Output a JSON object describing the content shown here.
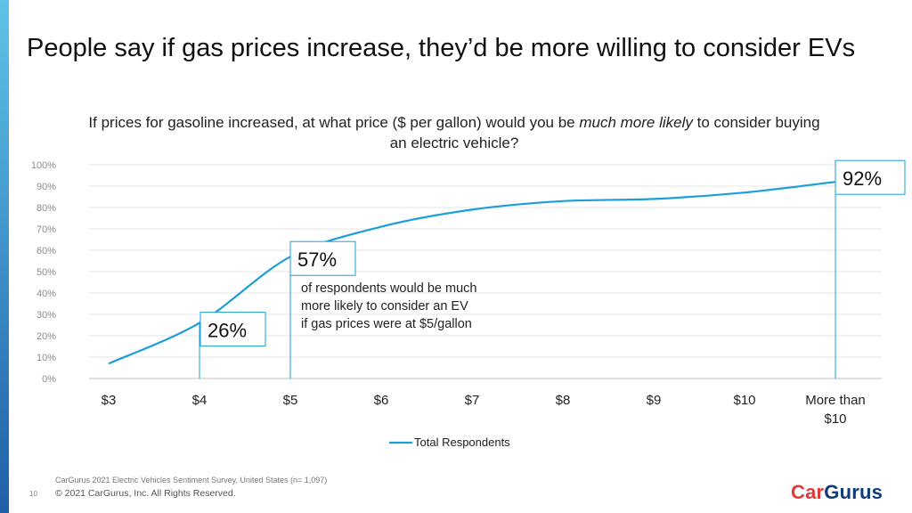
{
  "slide": {
    "title": "People say if gas prices increase, they’d be more willing to consider EVs",
    "question_part1": "If prices for gasoline increased, at what price ($ per gallon) would you be ",
    "question_emphasis": "much more likely",
    "question_part2": " to consider buying an electric vehicle?",
    "source": "CarGurus 2021 Electric Vehicles Sentiment Survey, United States (n= 1,097)",
    "copyright": "© 2021 CarGurus, Inc.  All Rights Reserved.",
    "page_number": "10",
    "logo": {
      "part1": "Car",
      "part2": "Gurus"
    },
    "colors": {
      "accent": "#1a9fd8",
      "line": "#1a9fd8",
      "brand_red": "#e23a3a",
      "brand_blue": "#0f3b7a"
    }
  },
  "chart_data": {
    "type": "line",
    "categories": [
      "$3",
      "$4",
      "$5",
      "$6",
      "$7",
      "$8",
      "$9",
      "$10",
      "More than $10"
    ],
    "series": [
      {
        "name": "Total Respondents",
        "values": [
          7,
          26,
          57,
          71,
          79,
          83,
          84,
          87,
          92
        ]
      }
    ],
    "ylim": [
      0,
      100
    ],
    "yticks": [
      "0%",
      "10%",
      "20%",
      "30%",
      "40%",
      "50%",
      "60%",
      "70%",
      "80%",
      "90%",
      "100%"
    ],
    "grid": true,
    "legend": "bottom",
    "annotations": [
      {
        "category_index": 1,
        "label": "26%"
      },
      {
        "category_index": 2,
        "label": "57%",
        "text": [
          "of respondents would be much",
          "more likely to consider an EV",
          "if gas prices were at $5/gallon"
        ]
      },
      {
        "category_index": 8,
        "label": "92%"
      }
    ]
  }
}
